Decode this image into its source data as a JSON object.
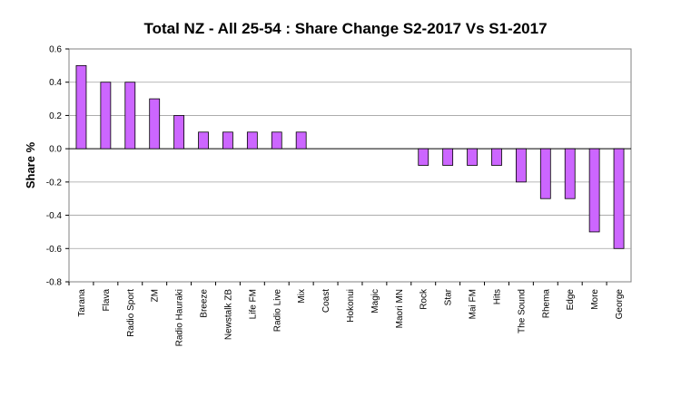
{
  "chart_data": {
    "type": "bar",
    "title": "Total NZ - All 25-54 : Share Change  S2-2017 Vs S1-2017",
    "xlabel": "",
    "ylabel": "Share  %",
    "ylim": [
      -0.8,
      0.6
    ],
    "yticks": [
      "0.6",
      "0.4",
      "0.2",
      "0.0",
      "-0.2",
      "-0.4",
      "-0.6",
      "-0.8"
    ],
    "grid": true,
    "legend": "none",
    "categories": [
      "Tarana",
      "Flava",
      "Radio Sport",
      "ZM",
      "Radio Hauraki",
      "Breeze",
      "Newstalk ZB",
      "Life FM",
      "Radio Live",
      "Mix",
      "Coast",
      "Hokonui",
      "Magic",
      "Maori MN",
      "Rock",
      "Star",
      "Mai FM",
      "Hits",
      "The Sound",
      "Rhema",
      "Edge",
      "More",
      "George"
    ],
    "values": [
      0.5,
      0.4,
      0.4,
      0.3,
      0.2,
      0.1,
      0.1,
      0.1,
      0.1,
      0.1,
      0.0,
      0.0,
      0.0,
      0.0,
      -0.1,
      -0.1,
      -0.1,
      -0.1,
      -0.2,
      -0.3,
      -0.3,
      -0.5,
      -0.6
    ],
    "colors": {
      "bar_fill": "#cc66ff",
      "bar_stroke": "#000000",
      "grid": "#a0a0a0",
      "axis": "#000000",
      "plot_border": "#808080"
    }
  }
}
